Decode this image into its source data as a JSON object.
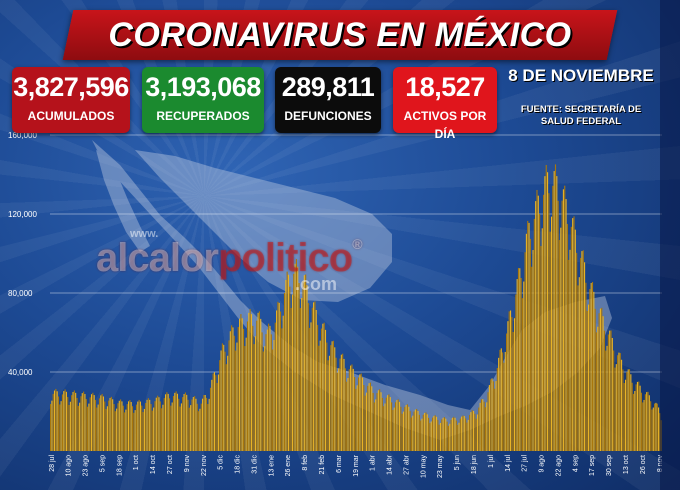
{
  "title": "CORONAVIRUS EN MÉXICO",
  "stats": [
    {
      "value": "3,827,596",
      "label": "ACUMULADOS",
      "color": "#b5121b"
    },
    {
      "value": "3,193,068",
      "label": "RECUPERADOS",
      "color": "#1b8a2f"
    },
    {
      "value": "289,811",
      "label": "DEFUNCIONES",
      "color": "#0c0c0c"
    },
    {
      "value": "18,527",
      "label": "ACTIVOS POR DÍA",
      "color": "#e0151c"
    }
  ],
  "date": "8 DE NOVIEMBRE",
  "source": [
    "FUENTE: SECRETARÍA DE",
    "SALUD FEDERAL"
  ],
  "watermark": {
    "prefix": "www.",
    "main_white1": "alcalor",
    "main_red": "politico",
    "registered": "®",
    "domain": ".com"
  },
  "chart_data": {
    "type": "bar",
    "ylim": [
      0,
      160000
    ],
    "yticks": [
      0,
      40000,
      80000,
      120000,
      160000
    ],
    "ytick_labels": [
      "",
      "40,000",
      "80,000",
      "120,000",
      "160,000"
    ],
    "grid": true,
    "colors": {
      "bar": "#e8b326",
      "bar_dark": "#a8770c"
    },
    "xtick_labels": [
      "28 jul",
      "10 ago",
      "23 ago",
      "5 sep",
      "18 sep",
      "1 oct",
      "14 oct",
      "27 oct",
      "9 nov",
      "22 nov",
      "5 dic",
      "18 dic",
      "31 dic",
      "13 ene",
      "26 ene",
      "8 feb",
      "21 feb",
      "6 mar",
      "19 mar",
      "1 abr",
      "14 abr",
      "27 abr",
      "10 may",
      "23 may",
      "5 jun",
      "18 jun",
      "1 jul",
      "14 jul",
      "27 jul",
      "9 ago",
      "22 ago",
      "4 sep",
      "17 sep",
      "30 sep",
      "13 oct",
      "26 oct",
      "8 nov"
    ],
    "anchors": [
      {
        "d": 0,
        "v": 29000
      },
      {
        "d": 13,
        "v": 28500
      },
      {
        "d": 26,
        "v": 27500
      },
      {
        "d": 39,
        "v": 26500
      },
      {
        "d": 52,
        "v": 24000
      },
      {
        "d": 65,
        "v": 23500
      },
      {
        "d": 78,
        "v": 25000
      },
      {
        "d": 91,
        "v": 28000
      },
      {
        "d": 104,
        "v": 27000
      },
      {
        "d": 114,
        "v": 24000
      },
      {
        "d": 120,
        "v": 30000
      },
      {
        "d": 130,
        "v": 50000
      },
      {
        "d": 140,
        "v": 62000
      },
      {
        "d": 150,
        "v": 66000
      },
      {
        "d": 157,
        "v": 66000
      },
      {
        "d": 164,
        "v": 58000
      },
      {
        "d": 170,
        "v": 65000
      },
      {
        "d": 177,
        "v": 80000
      },
      {
        "d": 183,
        "v": 90000
      },
      {
        "d": 190,
        "v": 88000
      },
      {
        "d": 197,
        "v": 74000
      },
      {
        "d": 205,
        "v": 62000
      },
      {
        "d": 215,
        "v": 50000
      },
      {
        "d": 225,
        "v": 42000
      },
      {
        "d": 235,
        "v": 36000
      },
      {
        "d": 245,
        "v": 30000
      },
      {
        "d": 260,
        "v": 25000
      },
      {
        "d": 275,
        "v": 20000
      },
      {
        "d": 288,
        "v": 17000
      },
      {
        "d": 300,
        "v": 15500
      },
      {
        "d": 312,
        "v": 16500
      },
      {
        "d": 322,
        "v": 20000
      },
      {
        "d": 330,
        "v": 28000
      },
      {
        "d": 338,
        "v": 42000
      },
      {
        "d": 346,
        "v": 62000
      },
      {
        "d": 354,
        "v": 85000
      },
      {
        "d": 362,
        "v": 110000
      },
      {
        "d": 370,
        "v": 125000
      },
      {
        "d": 377,
        "v": 136000
      },
      {
        "d": 384,
        "v": 132000
      },
      {
        "d": 392,
        "v": 118000
      },
      {
        "d": 400,
        "v": 100000
      },
      {
        "d": 408,
        "v": 82000
      },
      {
        "d": 416,
        "v": 68000
      },
      {
        "d": 424,
        "v": 56000
      },
      {
        "d": 432,
        "v": 44000
      },
      {
        "d": 440,
        "v": 36000
      },
      {
        "d": 448,
        "v": 30000
      },
      {
        "d": 456,
        "v": 25000
      },
      {
        "d": 462,
        "v": 19000
      }
    ]
  }
}
